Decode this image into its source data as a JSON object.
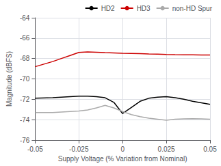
{
  "chart_data": {
    "type": "line",
    "xlabel": "Supply Voltage (% Variation from Nominal)",
    "ylabel": "Magnitude (dBFS)",
    "x": [
      -0.05,
      -0.04,
      -0.035,
      -0.03,
      -0.025,
      -0.02,
      -0.015,
      -0.01,
      -0.005,
      0.0,
      0.005,
      0.01,
      0.015,
      0.02,
      0.025,
      0.03,
      0.035,
      0.04,
      0.045,
      0.05
    ],
    "series": [
      {
        "name": "HD2",
        "color": "#000000",
        "values": [
          -71.9,
          -71.85,
          -71.8,
          -71.75,
          -71.7,
          -71.7,
          -71.75,
          -71.85,
          -72.3,
          -73.4,
          -72.8,
          -72.2,
          -71.9,
          -71.8,
          -71.75,
          -71.85,
          -72.0,
          -72.2,
          -72.35,
          -72.5
        ]
      },
      {
        "name": "HD3",
        "color": "#cc0000",
        "values": [
          -68.8,
          -68.3,
          -68.0,
          -67.7,
          -67.4,
          -67.35,
          -67.38,
          -67.42,
          -67.45,
          -67.48,
          -67.5,
          -67.52,
          -67.55,
          -67.57,
          -67.6,
          -67.62,
          -67.63,
          -67.64,
          -67.65,
          -67.65
        ]
      },
      {
        "name": "non-HD Spur",
        "color": "#aaaaaa",
        "values": [
          -73.3,
          -73.3,
          -73.25,
          -73.2,
          -73.15,
          -73.05,
          -72.85,
          -72.6,
          -72.85,
          -73.2,
          -73.5,
          -73.7,
          -73.85,
          -73.95,
          -74.05,
          -73.95,
          -73.92,
          -73.9,
          -73.92,
          -73.95
        ]
      }
    ],
    "xlim": [
      -0.05,
      0.05
    ],
    "xticks": [
      -0.05,
      -0.025,
      0,
      0.025,
      0.05
    ],
    "ylim": [
      -76,
      -64
    ],
    "yticks": [
      -76,
      -74,
      -72,
      -70,
      -68,
      -66,
      -64
    ],
    "grid": true,
    "legend": "upper right"
  }
}
